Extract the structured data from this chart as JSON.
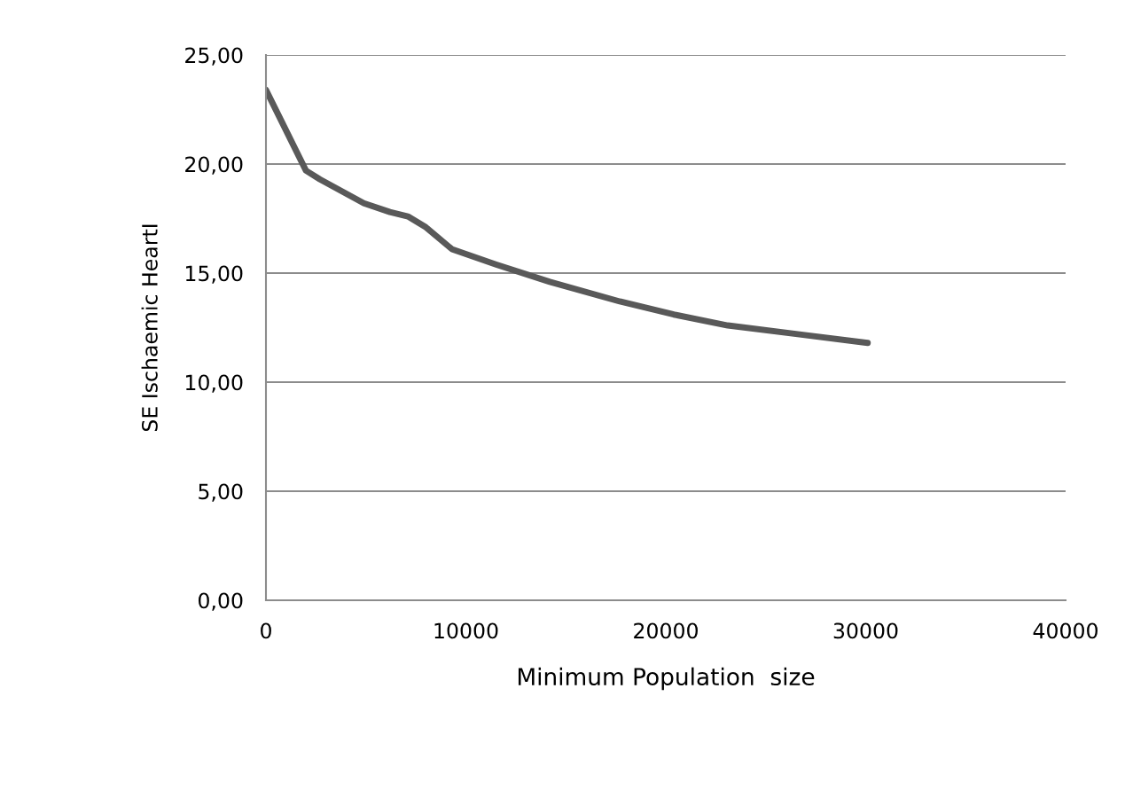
{
  "chart_data": {
    "type": "line",
    "xlabel": "Minimum Population  size",
    "ylabel": "SE Ischaemic HeartI",
    "series": [
      {
        "color": "#595959",
        "x": [
          0,
          2000,
          2700,
          4900,
          6200,
          7100,
          8000,
          9300,
          11500,
          14200,
          17700,
          20400,
          23100,
          26600,
          30100
        ],
        "values": [
          23.4,
          19.7,
          19.3,
          18.2,
          17.8,
          17.6,
          17.1,
          16.1,
          15.4,
          14.6,
          13.7,
          13.1,
          12.6,
          12.2,
          11.8
        ]
      }
    ],
    "xlim": [
      0,
      40000
    ],
    "xticks": [
      0,
      10000,
      20000,
      30000,
      40000
    ],
    "ylim": [
      0,
      25
    ],
    "yticks": [
      {
        "value": 0,
        "label": "0,00"
      },
      {
        "value": 5,
        "label": "5,00"
      },
      {
        "value": 10,
        "label": "10,00"
      },
      {
        "value": 15,
        "label": "15,00"
      },
      {
        "value": 20,
        "label": "20,00"
      },
      {
        "value": 25,
        "label": "25,00"
      }
    ],
    "grid": "y",
    "marker": "none",
    "line_style": "solid"
  }
}
